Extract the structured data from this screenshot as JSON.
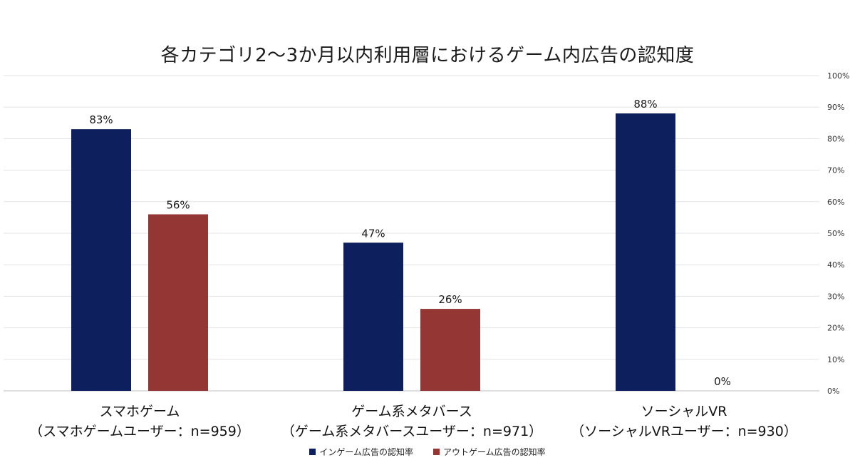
{
  "chart_data": {
    "type": "bar",
    "title": "各カテゴリ2〜3か月以内利用層におけるゲーム内広告の認知度",
    "categories": [
      [
        "スマホゲーム",
        "（スマホゲームユーザー：n=959）"
      ],
      [
        "ゲーム系メタバース",
        "（ゲーム系メタバースユーザー：n=971）"
      ],
      [
        "ソーシャルVR",
        "（ソーシャルVRユーザー：n=930）"
      ]
    ],
    "series": [
      {
        "name": "インゲーム広告の認知率",
        "color": "#0d1f5c",
        "values": [
          83,
          47,
          88
        ],
        "labels": [
          "83%",
          "47%",
          "88%"
        ]
      },
      {
        "name": "アウトゲーム広告の認知率",
        "color": "#943634",
        "values": [
          56,
          26,
          0
        ],
        "labels": [
          "56%",
          "26%",
          "0%"
        ]
      }
    ],
    "ylim": [
      0,
      100
    ],
    "y_ticks": [
      "0%",
      "10%",
      "20%",
      "30%",
      "40%",
      "50%",
      "60%",
      "70%",
      "80%",
      "90%",
      "100%"
    ],
    "y_axis_side": "right",
    "grid": true,
    "legend_position": "bottom"
  }
}
